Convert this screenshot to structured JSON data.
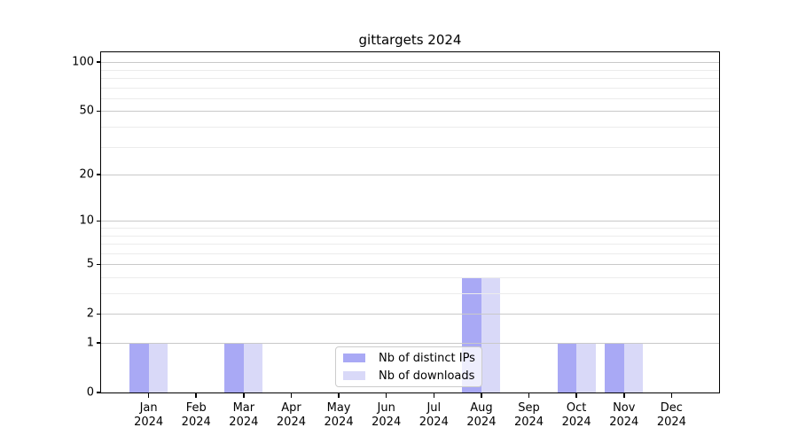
{
  "chart_data": {
    "type": "bar",
    "title": "gittargets 2024",
    "categories": [
      "Jan 2024",
      "Feb 2024",
      "Mar 2024",
      "Apr 2024",
      "May 2024",
      "Jun 2024",
      "Jul 2024",
      "Aug 2024",
      "Sep 2024",
      "Oct 2024",
      "Nov 2024",
      "Dec 2024"
    ],
    "series": [
      {
        "name": "Nb of distinct IPs",
        "color": "#a9a9f5",
        "values": [
          1,
          0,
          1,
          0,
          0,
          0,
          0,
          4,
          0,
          1,
          1,
          0
        ]
      },
      {
        "name": "Nb of downloads",
        "color": "#d9d9f8",
        "values": [
          1,
          0,
          1,
          0,
          0,
          0,
          0,
          4,
          0,
          1,
          1,
          0
        ]
      }
    ],
    "xlabel": "",
    "ylabel": "",
    "yscale": "log1p",
    "ylim": [
      0,
      115
    ],
    "y_ticks": [
      0,
      1,
      2,
      5,
      10,
      20,
      50,
      100
    ],
    "y_minor_gridlines": [
      3,
      4,
      6,
      7,
      8,
      9,
      30,
      40,
      60,
      70,
      80,
      90
    ],
    "grid": true,
    "legend_position": "lower center"
  },
  "colors": {
    "bar_distinct_ips": "#a9a9f5",
    "bar_downloads": "#d9d9f8",
    "major_grid": "#c9c9c9",
    "minor_grid": "#ececec",
    "axis": "#000000",
    "legend_border": "#cccccc"
  }
}
